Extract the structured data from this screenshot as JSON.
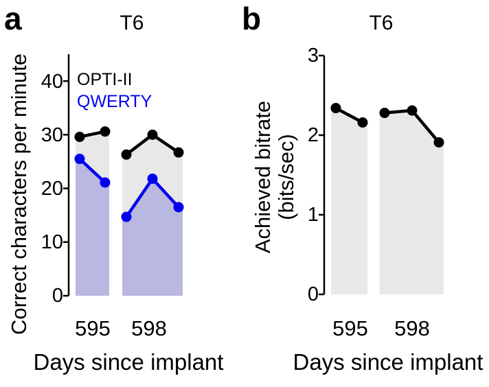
{
  "accent_colors": {
    "black_series": "#000000",
    "blue_series": "#0000ee",
    "gray_fill": "#e8e8e8",
    "lavender_fill": "#b8b8e0"
  },
  "chart_data": [
    {
      "type": "line",
      "panel_label": "a",
      "title": "T6",
      "ylabel": "Correct characters per minute",
      "xlabel": "Days since implant",
      "categories": [
        "595",
        "598"
      ],
      "ylim": [
        0,
        45
      ],
      "yticks": [
        0,
        10,
        20,
        30,
        40
      ],
      "ytick_labels_top_down": [
        "40",
        "30",
        "20",
        "10",
        "0"
      ],
      "grid": false,
      "legend_position": "top-left-inside",
      "series": [
        {
          "name": "OPTI-II",
          "color": "#000000",
          "fill_color": "#e8e8e8",
          "values_by_group": [
            [
              29.6,
              30.6
            ],
            [
              26.3,
              30.0,
              26.7
            ]
          ]
        },
        {
          "name": "QWERTY",
          "color": "#0000ee",
          "fill_color": "#b8b8e0",
          "values_by_group": [
            [
              25.5,
              21.1
            ],
            [
              14.7,
              21.8,
              16.5
            ]
          ]
        }
      ]
    },
    {
      "type": "line",
      "panel_label": "b",
      "title": "T6",
      "ylabel_line1": "Achieved bitrate",
      "ylabel_line2": "(bits/sec)",
      "xlabel": "Days since implant",
      "categories": [
        "595",
        "598"
      ],
      "ylim": [
        0,
        3
      ],
      "yticks": [
        0,
        1,
        2,
        3
      ],
      "ytick_labels_top_down": [
        "3",
        "2",
        "1",
        "0"
      ],
      "grid": false,
      "series": [
        {
          "name": "OPTI-II",
          "color": "#000000",
          "fill_color": "#e8e8e8",
          "values_by_group": [
            [
              2.34,
              2.16
            ],
            [
              2.28,
              2.31,
              1.91
            ]
          ]
        }
      ]
    }
  ]
}
